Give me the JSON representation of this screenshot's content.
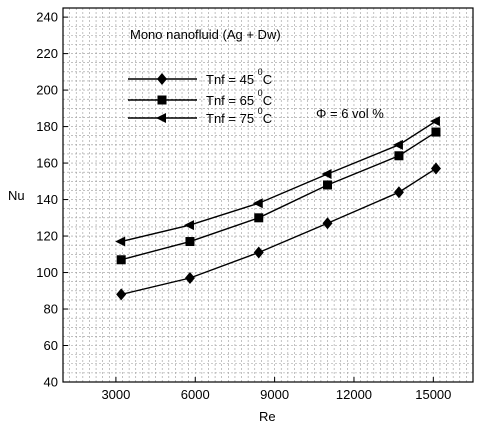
{
  "chart_data": {
    "type": "line",
    "title": "Mono nanofluid (Ag + Dw)",
    "annotation": "Φ = 6 vol %",
    "xlabel": "Re",
    "ylabel": "Nu",
    "xlim": [
      1000,
      16500
    ],
    "ylim": [
      40,
      245
    ],
    "xticks": [
      3000,
      6000,
      9000,
      12000,
      15000
    ],
    "yticks": [
      40,
      60,
      80,
      100,
      120,
      140,
      160,
      180,
      200,
      220,
      240
    ],
    "grid": true,
    "legend_position": "top-left",
    "series": [
      {
        "name": "Tnf = 45",
        "label_prefix": "Tnf = 45",
        "label_sup": "0",
        "label_unit": "C",
        "marker": "diamond",
        "x": [
          3200,
          5800,
          8400,
          11000,
          13700,
          15100
        ],
        "y": [
          88,
          97,
          111,
          127,
          144,
          157
        ]
      },
      {
        "name": "Tnf = 65",
        "label_prefix": "Tnf = 65",
        "label_sup": "0",
        "label_unit": "C",
        "marker": "square",
        "x": [
          3200,
          5800,
          8400,
          11000,
          13700,
          15100
        ],
        "y": [
          107,
          117,
          130,
          148,
          164,
          177
        ]
      },
      {
        "name": "Tnf = 75",
        "label_prefix": "Tnf = 75",
        "label_sup": "0",
        "label_unit": "C",
        "marker": "triangle-left",
        "x": [
          3200,
          5800,
          8400,
          11000,
          13700,
          15100
        ],
        "y": [
          117,
          126,
          138,
          154,
          170,
          183
        ]
      }
    ]
  }
}
